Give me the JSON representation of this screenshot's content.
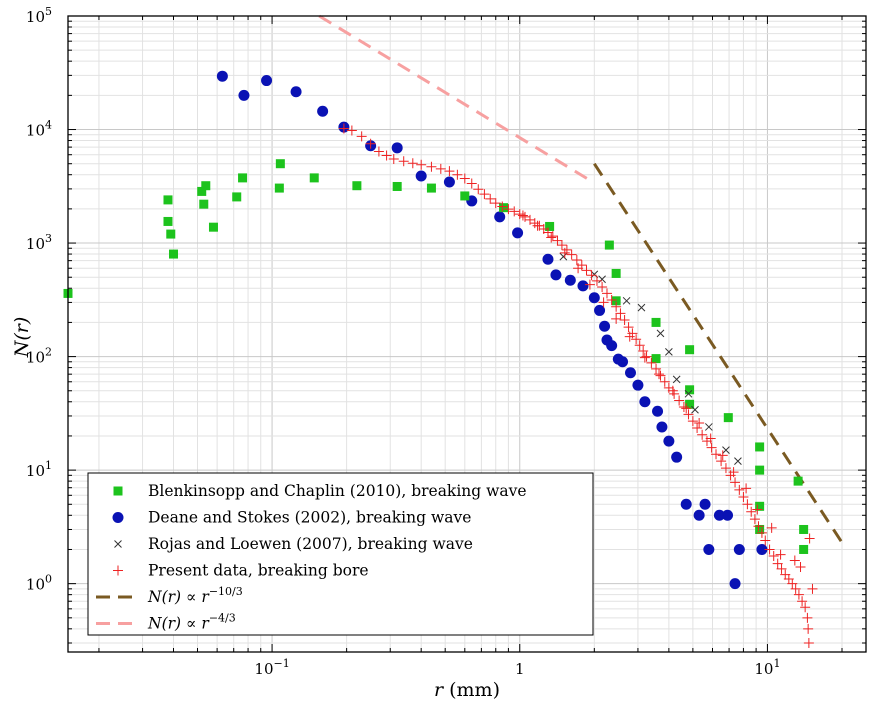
{
  "chart_data": {
    "type": "scatter",
    "xlabel": "r (mm)",
    "ylabel": "N(r)",
    "xscale": "log",
    "yscale": "log",
    "xlim": [
      0.015,
      25
    ],
    "ylim": [
      0.25,
      100000
    ],
    "grid": true,
    "legend_position": "bottom-left",
    "x_tick_labels": [
      "10",
      "1",
      "10"
    ],
    "x_tick_exponents": [
      "−1",
      "",
      "1"
    ],
    "y_tick_labels": [
      "10",
      "10",
      "10",
      "10",
      "10",
      "10"
    ],
    "y_tick_exponents": [
      "0",
      "1",
      "2",
      "3",
      "4",
      "5"
    ],
    "series": [
      {
        "name": "Blenkinsopp and Chaplin (2010), breaking wave",
        "marker": "square",
        "color": "#1dc31d",
        "points": [
          [
            0.015,
            360
          ],
          [
            0.038,
            2400
          ],
          [
            0.038,
            1550
          ],
          [
            0.039,
            1200
          ],
          [
            0.04,
            800
          ],
          [
            0.052,
            2850
          ],
          [
            0.053,
            2200
          ],
          [
            0.054,
            3200
          ],
          [
            0.058,
            1380
          ],
          [
            0.072,
            2550
          ],
          [
            0.076,
            3750
          ],
          [
            0.107,
            3050
          ],
          [
            0.108,
            5000
          ],
          [
            0.148,
            3750
          ],
          [
            0.22,
            3200
          ],
          [
            0.32,
            3150
          ],
          [
            0.44,
            3050
          ],
          [
            0.6,
            2600
          ],
          [
            0.86,
            2050
          ],
          [
            1.32,
            1400
          ],
          [
            2.3,
            960
          ],
          [
            2.45,
            540
          ],
          [
            2.45,
            310
          ],
          [
            3.55,
            200
          ],
          [
            3.55,
            96
          ],
          [
            4.85,
            115
          ],
          [
            4.85,
            51
          ],
          [
            4.85,
            38
          ],
          [
            6.95,
            29
          ],
          [
            9.3,
            16
          ],
          [
            9.3,
            10
          ],
          [
            9.3,
            4.8
          ],
          [
            9.3,
            3.0
          ],
          [
            13.3,
            8.0
          ],
          [
            14.0,
            3.0
          ],
          [
            14.0,
            2.0
          ]
        ]
      },
      {
        "name": "Deane and Stokes (2002), breaking wave",
        "marker": "circle",
        "color": "#0a12b4",
        "points": [
          [
            0.063,
            29500
          ],
          [
            0.077,
            20000
          ],
          [
            0.095,
            27000
          ],
          [
            0.125,
            21500
          ],
          [
            0.16,
            14500
          ],
          [
            0.195,
            10500
          ],
          [
            0.25,
            7200
          ],
          [
            0.32,
            6900
          ],
          [
            0.4,
            3900
          ],
          [
            0.52,
            3450
          ],
          [
            0.64,
            2350
          ],
          [
            0.83,
            1700
          ],
          [
            0.98,
            1230
          ],
          [
            1.3,
            720
          ],
          [
            1.4,
            525
          ],
          [
            1.6,
            470
          ],
          [
            1.8,
            420
          ],
          [
            2.0,
            330
          ],
          [
            2.1,
            255
          ],
          [
            2.2,
            185
          ],
          [
            2.25,
            140
          ],
          [
            2.35,
            125
          ],
          [
            2.5,
            95
          ],
          [
            2.6,
            90
          ],
          [
            2.8,
            72
          ],
          [
            3.0,
            56
          ],
          [
            3.2,
            40
          ],
          [
            3.6,
            33
          ],
          [
            3.75,
            24
          ],
          [
            4.0,
            18
          ],
          [
            4.3,
            13
          ],
          [
            4.7,
            5.0
          ],
          [
            5.3,
            4.0
          ],
          [
            5.6,
            5.0
          ],
          [
            5.8,
            2.0
          ],
          [
            6.4,
            4.0
          ],
          [
            6.9,
            4.0
          ],
          [
            7.4,
            1.0
          ],
          [
            7.7,
            2.0
          ],
          [
            9.5,
            2.0
          ]
        ]
      },
      {
        "name": "Rojas and Loewen (2007), breaking wave",
        "marker": "x",
        "color": "#333333",
        "points": [
          [
            1.5,
            760
          ],
          [
            2.0,
            530
          ],
          [
            2.15,
            480
          ],
          [
            2.7,
            310
          ],
          [
            3.1,
            270
          ],
          [
            3.7,
            160
          ],
          [
            4.0,
            110
          ],
          [
            4.3,
            63
          ],
          [
            4.8,
            47
          ],
          [
            5.1,
            34
          ],
          [
            5.8,
            24
          ],
          [
            6.8,
            15
          ],
          [
            7.6,
            12
          ]
        ]
      },
      {
        "name": "Present data, breaking bore",
        "marker": "plus",
        "color": "#ee2222",
        "points": [
          [
            0.195,
            10200
          ],
          [
            0.21,
            9800
          ],
          [
            0.23,
            8700
          ],
          [
            0.25,
            7500
          ],
          [
            0.27,
            6400
          ],
          [
            0.29,
            5900
          ],
          [
            0.31,
            5500
          ],
          [
            0.34,
            5250
          ],
          [
            0.37,
            5050
          ],
          [
            0.4,
            4900
          ],
          [
            0.44,
            4700
          ],
          [
            0.48,
            4500
          ],
          [
            0.52,
            4300
          ],
          [
            0.56,
            4000
          ],
          [
            0.6,
            3700
          ],
          [
            0.64,
            3350
          ],
          [
            0.68,
            2980
          ],
          [
            0.72,
            2700
          ],
          [
            0.76,
            2450
          ],
          [
            0.8,
            2250
          ],
          [
            0.85,
            2100
          ],
          [
            0.9,
            1990
          ],
          [
            0.95,
            1900
          ],
          [
            1.0,
            1800
          ],
          [
            1.05,
            1700
          ],
          [
            1.1,
            1600
          ],
          [
            1.15,
            1500
          ],
          [
            1.2,
            1420
          ],
          [
            1.25,
            1330
          ],
          [
            1.3,
            1240
          ],
          [
            1.36,
            1150
          ],
          [
            1.42,
            1050
          ],
          [
            1.48,
            960
          ],
          [
            1.55,
            870
          ],
          [
            1.62,
            790
          ],
          [
            1.7,
            710
          ],
          [
            1.78,
            640
          ],
          [
            1.86,
            575
          ],
          [
            1.95,
            520
          ],
          [
            2.05,
            465
          ],
          [
            2.15,
            410
          ],
          [
            2.25,
            360
          ],
          [
            2.35,
            315
          ],
          [
            2.45,
            275
          ],
          [
            2.55,
            240
          ],
          [
            2.65,
            210
          ],
          [
            2.75,
            182
          ],
          [
            2.85,
            160
          ],
          [
            2.95,
            142
          ],
          [
            3.05,
            126
          ],
          [
            3.15,
            112
          ],
          [
            3.25,
            100
          ],
          [
            3.4,
            88
          ],
          [
            3.55,
            78
          ],
          [
            3.7,
            68
          ],
          [
            3.85,
            60
          ],
          [
            4.0,
            53
          ],
          [
            4.2,
            47
          ],
          [
            4.4,
            41
          ],
          [
            4.6,
            36
          ],
          [
            4.8,
            31
          ],
          [
            5.0,
            27
          ],
          [
            5.2,
            23.5
          ],
          [
            5.45,
            20.5
          ],
          [
            5.7,
            18
          ],
          [
            5.95,
            15.8
          ],
          [
            6.2,
            13.8
          ],
          [
            6.5,
            12
          ],
          [
            6.8,
            10.4
          ],
          [
            7.1,
            9.0
          ],
          [
            7.4,
            7.8
          ],
          [
            7.7,
            6.7
          ],
          [
            8.0,
            5.8
          ],
          [
            8.3,
            5.0
          ],
          [
            8.6,
            4.3
          ],
          [
            8.9,
            3.7
          ],
          [
            9.2,
            3.2
          ],
          [
            9.5,
            2.8
          ],
          [
            9.8,
            2.4
          ],
          [
            10.2,
            2.0
          ],
          [
            10.6,
            1.75
          ],
          [
            11.0,
            1.5
          ],
          [
            11.4,
            1.35
          ],
          [
            11.8,
            1.2
          ],
          [
            12.2,
            1.1
          ],
          [
            12.6,
            1.0
          ],
          [
            13.0,
            0.9
          ],
          [
            13.4,
            0.8
          ],
          [
            13.8,
            0.7
          ],
          [
            14.2,
            0.62
          ],
          [
            14.5,
            0.5
          ],
          [
            14.6,
            0.4
          ],
          [
            14.7,
            0.3
          ],
          [
            14.8,
            2.5
          ],
          [
            15.2,
            0.9
          ],
          [
            13.6,
            1.4
          ],
          [
            12.9,
            1.6
          ],
          [
            11.3,
            1.8
          ],
          [
            10.4,
            3.1
          ],
          [
            9.1,
            4.5
          ],
          [
            8.2,
            6.9
          ],
          [
            7.3,
            9.6
          ],
          [
            6.6,
            13.5
          ],
          [
            5.9,
            19
          ],
          [
            5.3,
            26
          ],
          [
            4.7,
            35
          ],
          [
            4.15,
            50
          ],
          [
            3.65,
            70
          ],
          [
            3.2,
            98
          ],
          [
            2.78,
            150
          ],
          [
            2.45,
            215
          ],
          [
            2.18,
            300
          ],
          [
            1.92,
            430
          ],
          [
            1.72,
            600
          ],
          [
            1.52,
            820
          ],
          [
            1.34,
            1120
          ],
          [
            1.18,
            1420
          ],
          [
            1.03,
            1750
          ]
        ]
      },
      {
        "name": "N(r) ∝ r",
        "exponent": "−10/3",
        "marker": "dashed-line",
        "color": "#7a5a22",
        "x": [
          2.0,
          20.0
        ],
        "y": [
          5000,
          2.3
        ]
      },
      {
        "name": "N(r) ∝ r",
        "exponent": "−4/3",
        "marker": "dashed-line",
        "color": "#f7a0a0",
        "x": [
          0.155,
          1.95
        ],
        "y": [
          100000,
          3500
        ]
      }
    ]
  }
}
